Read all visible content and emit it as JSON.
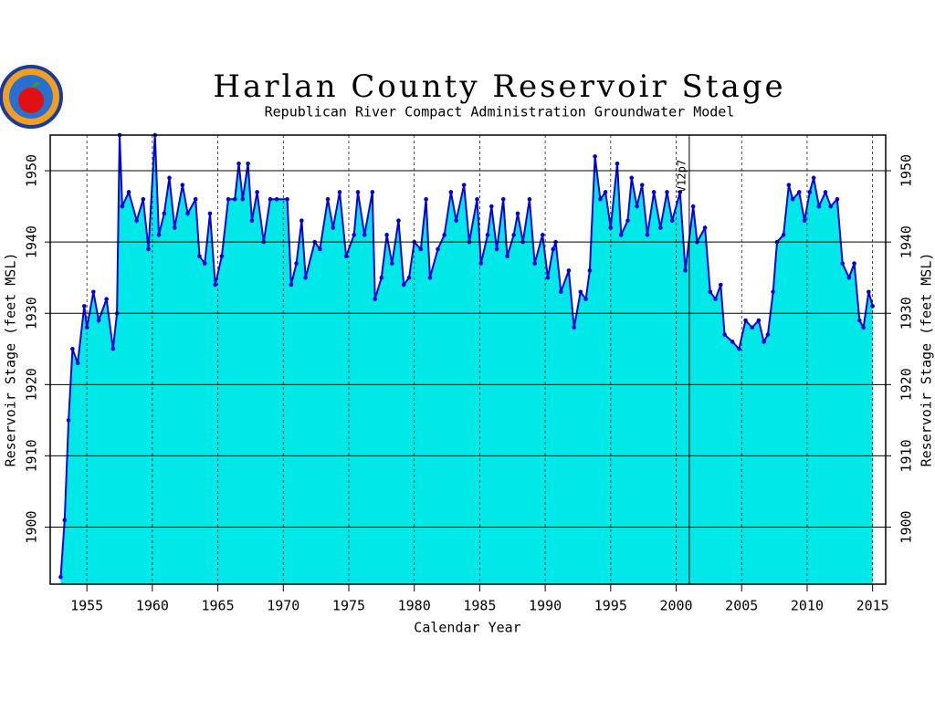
{
  "chart_data": {
    "type": "area",
    "title": "Harlan County Reservoir Stage",
    "subtitle": "Republican River Compact Administration Groundwater Model",
    "x_label": "Calendar Year",
    "y_label": "Reservoir Stage (feet MSL)",
    "y2_label": "Reservoir Stage (feet MSL)",
    "xlim": [
      1952.2,
      2016
    ],
    "ylim": [
      1892,
      1955
    ],
    "xticks": [
      1955,
      1960,
      1965,
      1970,
      1975,
      1980,
      1985,
      1990,
      1995,
      2000,
      2005,
      2010,
      2015
    ],
    "yticks": [
      1900,
      1910,
      1920,
      1930,
      1940,
      1950
    ],
    "grid": true,
    "annotation": {
      "text": "V12p7",
      "x": 2001
    },
    "x": [
      1953.0,
      1953.3,
      1953.6,
      1953.9,
      1954.3,
      1954.8,
      1955.0,
      1955.5,
      1955.9,
      1956.5,
      1957.0,
      1957.3,
      1957.5,
      1957.7,
      1958.2,
      1958.8,
      1959.3,
      1959.7,
      1960.2,
      1960.5,
      1960.9,
      1961.3,
      1961.7,
      1962.3,
      1962.7,
      1963.3,
      1963.6,
      1964.0,
      1964.4,
      1964.8,
      1965.3,
      1965.8,
      1966.3,
      1966.6,
      1966.9,
      1967.3,
      1967.6,
      1968.0,
      1968.5,
      1969.0,
      1969.5,
      1970.3,
      1970.6,
      1971.0,
      1971.4,
      1971.7,
      1972.4,
      1972.8,
      1973.4,
      1973.8,
      1974.3,
      1974.8,
      1975.4,
      1975.7,
      1976.2,
      1976.8,
      1977.0,
      1977.5,
      1977.9,
      1978.3,
      1978.8,
      1979.2,
      1979.6,
      1980.0,
      1980.5,
      1980.9,
      1981.2,
      1981.8,
      1982.3,
      1982.8,
      1983.2,
      1983.8,
      1984.2,
      1984.8,
      1985.1,
      1985.6,
      1985.9,
      1986.3,
      1986.8,
      1987.1,
      1987.6,
      1987.9,
      1988.3,
      1988.8,
      1989.2,
      1989.8,
      1990.2,
      1990.6,
      1990.8,
      1991.2,
      1991.8,
      1992.2,
      1992.7,
      1993.1,
      1993.4,
      1993.8,
      1994.2,
      1994.6,
      1995.0,
      1995.5,
      1995.8,
      1996.3,
      1996.6,
      1997.0,
      1997.4,
      1997.8,
      1998.3,
      1998.8,
      1999.3,
      1999.7,
      2000.3,
      2000.7,
      2001.3,
      2001.6,
      2002.2,
      2002.6,
      2003.0,
      2003.4,
      2003.7,
      2004.3,
      2004.8,
      2005.3,
      2005.8,
      2006.3,
      2006.7,
      2007.0,
      2007.4,
      2007.7,
      2008.2,
      2008.6,
      2008.9,
      2009.4,
      2009.8,
      2010.2,
      2010.5,
      2010.9,
      2011.4,
      2011.8,
      2012.3,
      2012.7,
      2013.2,
      2013.6,
      2014.0,
      2014.3,
      2014.7,
      2015.0
    ],
    "series": [
      {
        "color": "#0000dd",
        "fill": "#00e8e8",
        "values": [
          1893,
          1901,
          1915,
          1925,
          1923,
          1931,
          1928,
          1933,
          1929,
          1932,
          1925,
          1930,
          1955,
          1945,
          1947,
          1943,
          1946,
          1939,
          1955,
          1941,
          1944,
          1949,
          1942,
          1948,
          1944,
          1946,
          1938,
          1937,
          1944,
          1934,
          1938,
          1946,
          1946,
          1951,
          1946,
          1951,
          1943,
          1947,
          1940,
          1946,
          1946,
          1946,
          1934,
          1937,
          1943,
          1935,
          1940,
          1939,
          1946,
          1942,
          1947,
          1938,
          1941,
          1947,
          1941,
          1947,
          1932,
          1935,
          1941,
          1937,
          1943,
          1934,
          1935,
          1940,
          1939,
          1946,
          1935,
          1939,
          1941,
          1947,
          1943,
          1948,
          1940,
          1946,
          1937,
          1941,
          1945,
          1939,
          1946,
          1938,
          1941,
          1944,
          1940,
          1946,
          1937,
          1941,
          1935,
          1939,
          1940,
          1933,
          1936,
          1928,
          1933,
          1932,
          1936,
          1952,
          1946,
          1947,
          1942,
          1951,
          1941,
          1943,
          1949,
          1945,
          1948,
          1941,
          1947,
          1942,
          1947,
          1943,
          1947,
          1936,
          1945,
          1940,
          1942,
          1933,
          1932,
          1934,
          1927,
          1926,
          1925,
          1929,
          1928,
          1929,
          1926,
          1927,
          1933,
          1940,
          1941,
          1948,
          1946,
          1947,
          1943,
          1947,
          1949,
          1945,
          1947,
          1945,
          1946,
          1937,
          1935,
          1937,
          1929,
          1928,
          1933,
          1931
        ]
      }
    ]
  }
}
